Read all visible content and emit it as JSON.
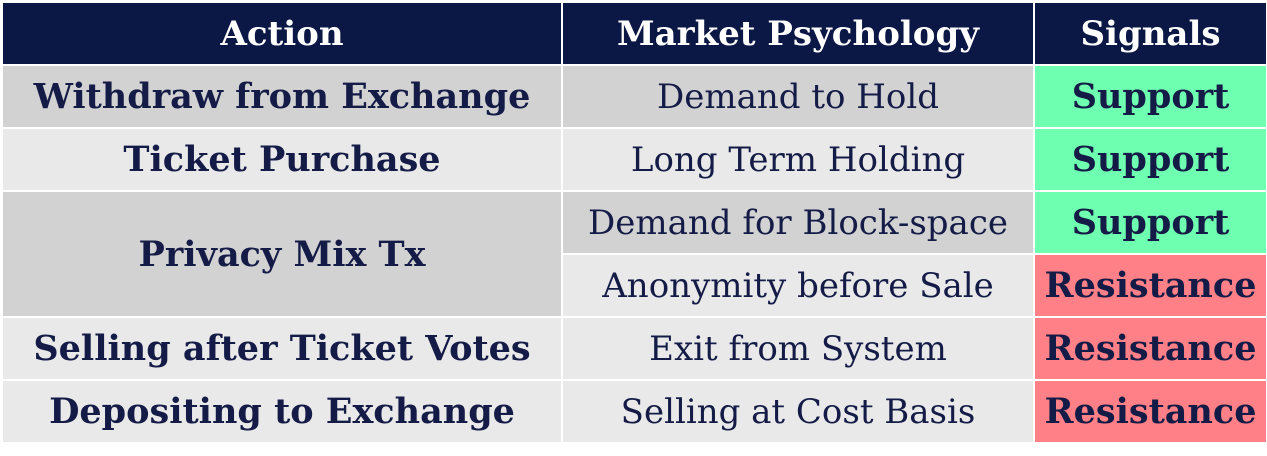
{
  "headers": {
    "action": "Action",
    "psychology": "Market Psychology",
    "signals": "Signals"
  },
  "rows": [
    {
      "action": "Withdraw from Exchange",
      "psychology": "Demand to Hold",
      "signal": "Support",
      "signal_color": "#6fffb0"
    },
    {
      "action": "Ticket Purchase",
      "psychology": "Long Term Holding",
      "signal": "Support",
      "signal_color": "#6fffb0"
    },
    {
      "action": "Privacy Mix Tx",
      "psychology": "Demand for Block-space",
      "signal": "Support",
      "signal_color": "#6fffb0"
    },
    {
      "action": "Privacy Mix Tx",
      "psychology": "Anonymity before Sale",
      "signal": "Resistance",
      "signal_color": "#ff8086"
    },
    {
      "action": "Selling after Ticket Votes",
      "psychology": "Exit from System",
      "signal": "Resistance",
      "signal_color": "#ff8086"
    },
    {
      "action": "Depositing to Exchange",
      "psychology": "Selling at Cost Basis",
      "signal": "Resistance",
      "signal_color": "#ff8086"
    }
  ],
  "colors": {
    "header_bg": "#0b1745",
    "header_text": "#ffffff",
    "body_text": "#141b46",
    "row_dark": "#d2d2d2",
    "row_light": "#e9e9e9",
    "support": "#6fffb0",
    "resistance": "#ff8086"
  }
}
